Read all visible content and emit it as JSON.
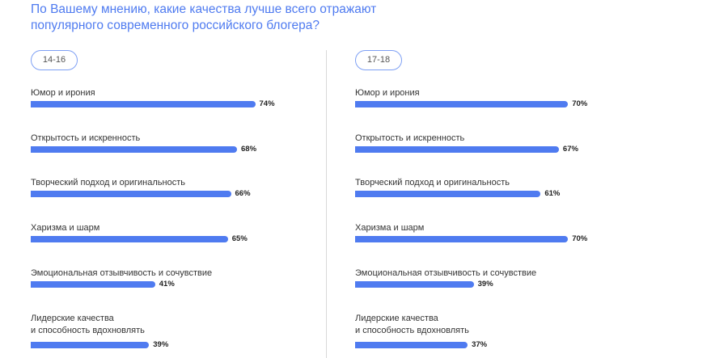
{
  "title_lines": [
    "По Вашему мнению, какие качества лучше всего отражают",
    "популярного современного российского блогера?"
  ],
  "colors": {
    "bar": "#4f7bf0",
    "title": "#4f7bf0",
    "tag_border": "#7ea0f4"
  },
  "chart_data": [
    {
      "type": "bar",
      "tag": "14-16",
      "categories": [
        [
          "Юмор и ирония"
        ],
        [
          "Открытость и искренность"
        ],
        [
          "Творческий подход и оригинальность"
        ],
        [
          "Харизма и шарм"
        ],
        [
          "Эмоциональная отзывчивость и сочувствие"
        ],
        [
          "Лидерские качества",
          "и способность вдохновлять"
        ]
      ],
      "values": [
        74,
        68,
        66,
        65,
        41,
        39
      ],
      "value_labels": [
        "74%",
        "68%",
        "66%",
        "65%",
        "41%",
        "39%"
      ]
    },
    {
      "type": "bar",
      "tag": "17-18",
      "categories": [
        [
          "Юмор и ирония"
        ],
        [
          "Открытость и искренность"
        ],
        [
          "Творческий подход и оригинальность"
        ],
        [
          "Харизма и шарм"
        ],
        [
          "Эмоциональная отзывчивость и сочувствие"
        ],
        [
          "Лидерские качества",
          "и способность вдохновлять"
        ]
      ],
      "values": [
        70,
        67,
        61,
        70,
        39,
        37
      ],
      "value_labels": [
        "70%",
        "67%",
        "61%",
        "70%",
        "39%",
        "37%"
      ]
    }
  ]
}
